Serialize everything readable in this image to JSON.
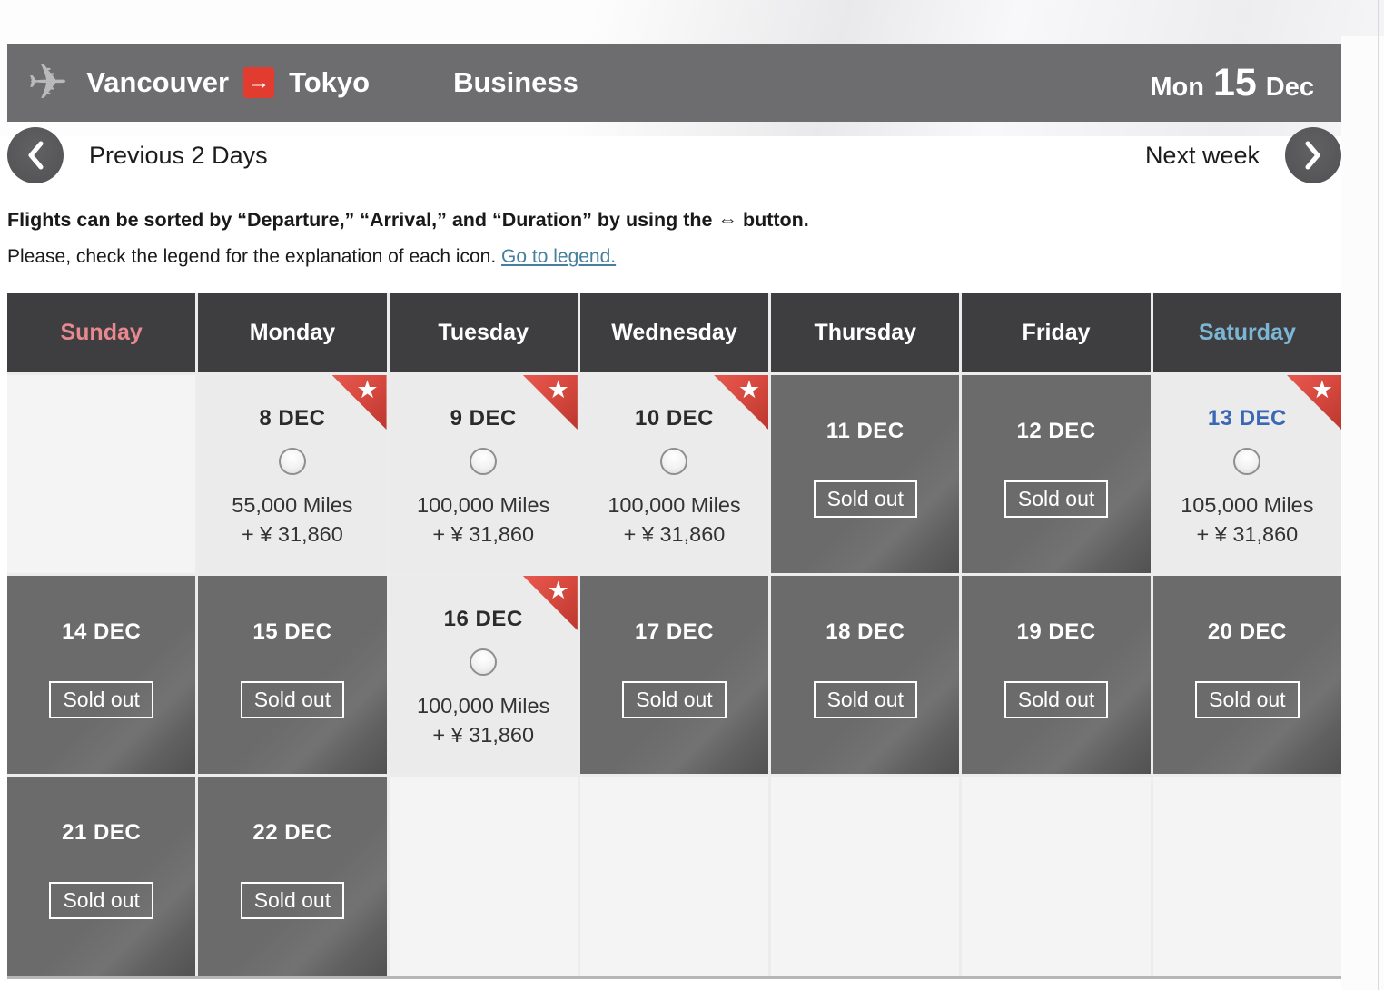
{
  "header": {
    "origin": "Vancouver",
    "destination": "Tokyo",
    "cabin": "Business",
    "date_prefix": "Mon",
    "date_day": "15",
    "date_suffix": "Dec",
    "route_arrow": "→",
    "plane_icon": "✈"
  },
  "nav": {
    "prev_label": "Previous 2 Days",
    "next_label": "Next week"
  },
  "instructions": {
    "sort_text": "Flights can be sorted by “Departure,” “Arrival,” and “Duration” by using the ⇔ button.",
    "legend_text": "Please, check the legend for the explanation of each icon. ",
    "legend_link": "Go to legend."
  },
  "colors": {
    "accent_red": "#e23b30",
    "link_blue": "#44809d",
    "saturday_blue": "#7cb6d5",
    "sunday_pink": "#e8888f",
    "weekday_white": "#ffffff",
    "award_date_dark": "#2b2b2b",
    "award_date_blue": "#3a68b5",
    "badge_red": "#d84a40"
  },
  "calendar": {
    "star_glyph": "★",
    "day_headers": [
      {
        "label": "Sunday",
        "color": "#e8888f"
      },
      {
        "label": "Monday",
        "color": "#ffffff"
      },
      {
        "label": "Tuesday",
        "color": "#ffffff"
      },
      {
        "label": "Wednesday",
        "color": "#ffffff"
      },
      {
        "label": "Thursday",
        "color": "#ffffff"
      },
      {
        "label": "Friday",
        "color": "#ffffff"
      },
      {
        "label": "Saturday",
        "color": "#7cb6d5"
      }
    ],
    "weeks": [
      [
        {
          "type": "empty"
        },
        {
          "type": "award",
          "date": "8 DEC",
          "miles": "55,000 Miles",
          "fee": "+ ¥ 31,860",
          "starred": true,
          "date_color": "#2b2b2b"
        },
        {
          "type": "award",
          "date": "9 DEC",
          "miles": "100,000 Miles",
          "fee": "+ ¥ 31,860",
          "starred": true,
          "date_color": "#2b2b2b"
        },
        {
          "type": "award",
          "date": "10 DEC",
          "miles": "100,000 Miles",
          "fee": "+ ¥ 31,860",
          "starred": true,
          "date_color": "#2b2b2b"
        },
        {
          "type": "soldout",
          "date": "11 DEC",
          "label": "Sold out"
        },
        {
          "type": "soldout",
          "date": "12 DEC",
          "label": "Sold out"
        },
        {
          "type": "award",
          "date": "13 DEC",
          "miles": "105,000 Miles",
          "fee": "+ ¥ 31,860",
          "starred": true,
          "date_color": "#3a68b5"
        }
      ],
      [
        {
          "type": "soldout",
          "date": "14 DEC",
          "label": "Sold out"
        },
        {
          "type": "soldout",
          "date": "15 DEC",
          "label": "Sold out"
        },
        {
          "type": "award",
          "date": "16 DEC",
          "miles": "100,000 Miles",
          "fee": "+ ¥ 31,860",
          "starred": true,
          "date_color": "#2b2b2b"
        },
        {
          "type": "soldout",
          "date": "17 DEC",
          "label": "Sold out"
        },
        {
          "type": "soldout",
          "date": "18 DEC",
          "label": "Sold out"
        },
        {
          "type": "soldout",
          "date": "19 DEC",
          "label": "Sold out"
        },
        {
          "type": "soldout",
          "date": "20 DEC",
          "label": "Sold out"
        }
      ],
      [
        {
          "type": "soldout",
          "date": "21 DEC",
          "label": "Sold out"
        },
        {
          "type": "soldout",
          "date": "22 DEC",
          "label": "Sold out"
        },
        {
          "type": "empty"
        },
        {
          "type": "empty"
        },
        {
          "type": "empty"
        },
        {
          "type": "empty"
        },
        {
          "type": "empty"
        }
      ]
    ]
  }
}
